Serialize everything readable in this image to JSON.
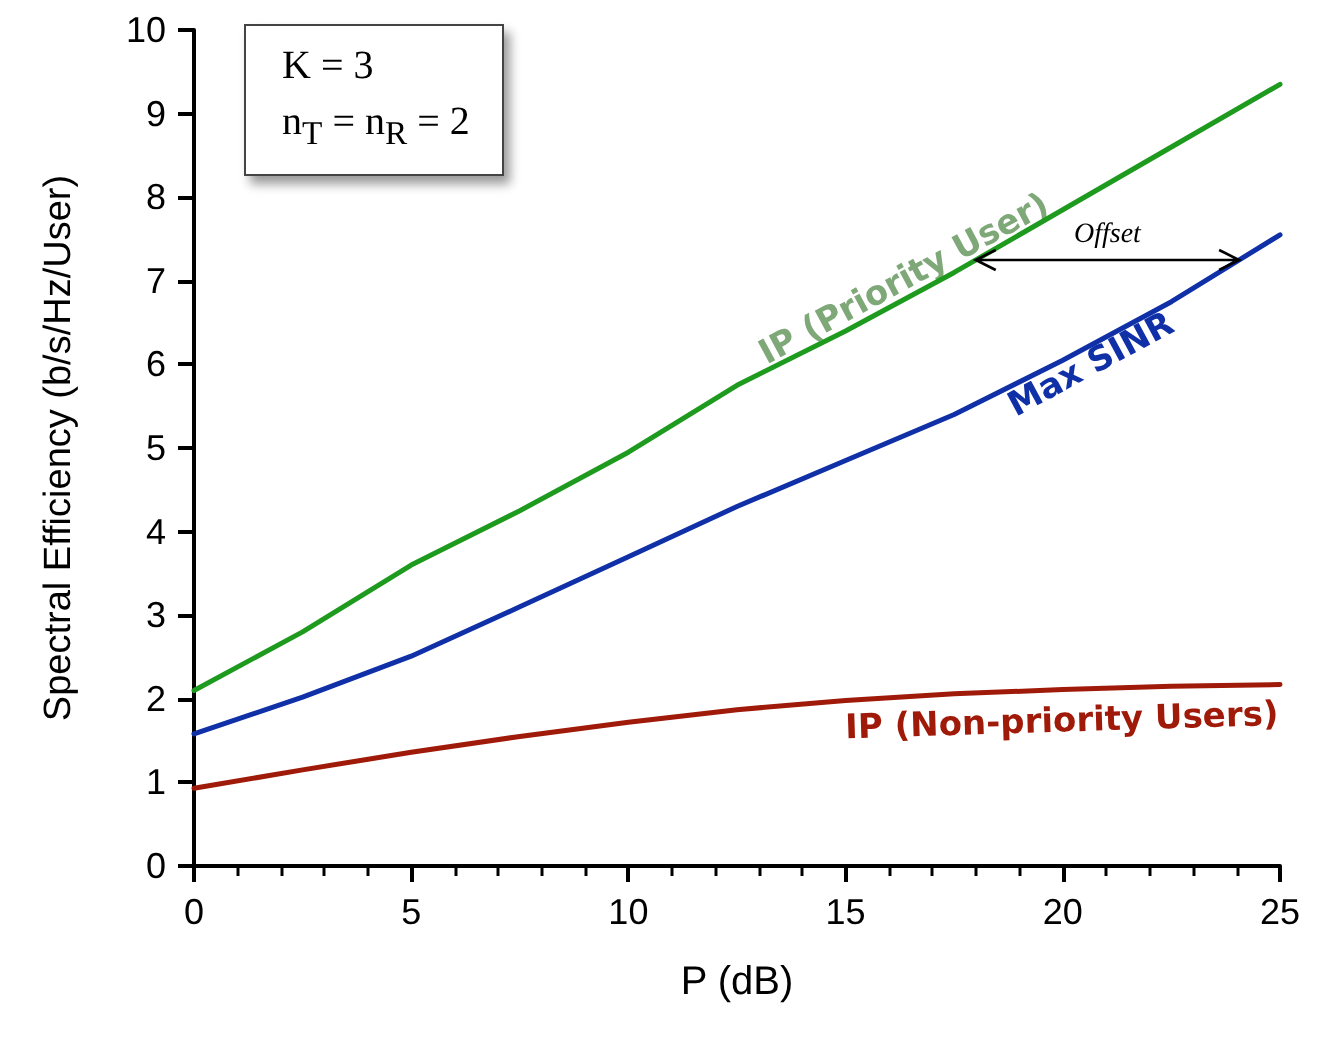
{
  "chart_data": {
    "type": "line",
    "xlabel": "P (dB)",
    "ylabel": "Spectral Efficiency (b/s/Hz/User)",
    "x": [
      0,
      2.5,
      5,
      7.5,
      10,
      12.5,
      15,
      17.5,
      20,
      22.5,
      25
    ],
    "series": [
      {
        "name": "IP (Priority User)",
        "color": "#1e9a1e",
        "values": [
          2.1,
          2.8,
          3.6,
          4.25,
          4.95,
          5.75,
          6.4,
          7.1,
          7.85,
          8.6,
          9.35
        ]
      },
      {
        "name": "Max SINR",
        "color": "#1030a8",
        "values": [
          1.58,
          2.02,
          2.51,
          3.1,
          3.7,
          4.3,
          4.85,
          5.4,
          6.05,
          6.75,
          7.55
        ]
      },
      {
        "name": "IP (Non-priority Users)",
        "color": "#a01a0a",
        "values": [
          0.93,
          1.15,
          1.36,
          1.55,
          1.72,
          1.87,
          1.98,
          2.06,
          2.11,
          2.15,
          2.17
        ]
      }
    ],
    "xlim": [
      0,
      25
    ],
    "xticks": [
      0,
      5,
      10,
      15,
      20,
      25
    ],
    "ylim": [
      0,
      10
    ],
    "yticks": [
      0,
      1,
      2,
      3,
      4,
      5,
      6,
      7,
      8,
      9,
      10
    ],
    "grid": false,
    "legend": false,
    "marker": "none",
    "line_style": "solid",
    "annotations": [
      "K = 3",
      "n$_{T}$ = n$_{R}$ = 2",
      "Offset"
    ]
  }
}
